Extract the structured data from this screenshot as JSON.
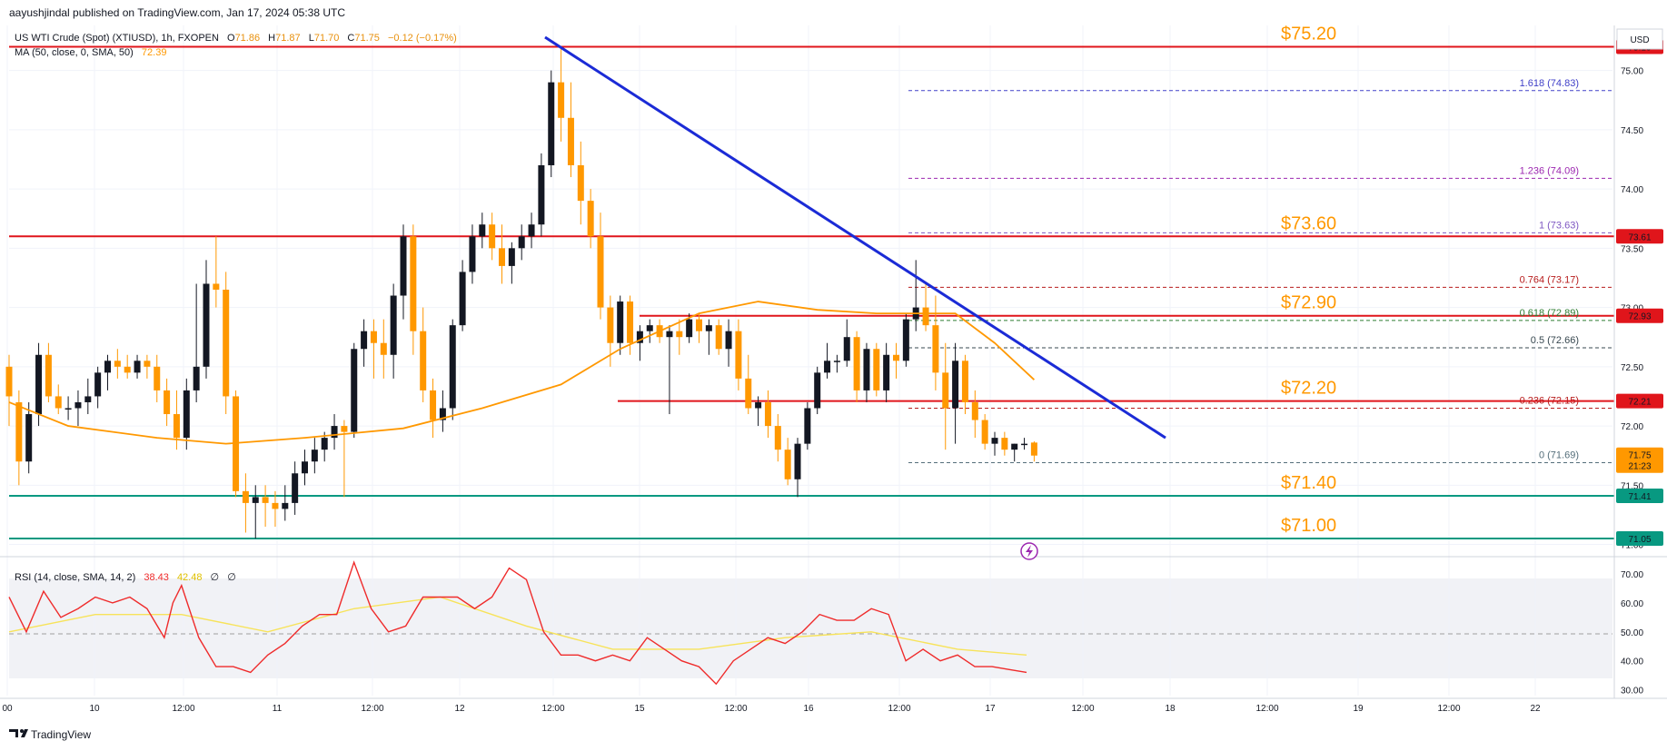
{
  "publish_line": "aayushjindal published on TradingView.com, Jan 17, 2024 05:38 UTC",
  "legend": {
    "symbol": "US WTI Crude (Spot) (XTIUSD), 1h, FXOPEN",
    "o_label": "O",
    "o": "71.86",
    "h_label": "H",
    "h": "71.87",
    "l_label": "L",
    "l": "71.70",
    "c_label": "C",
    "c": "71.75",
    "change": "−0.12 (−0.17%)",
    "ma_label": "MA (50, close, 0, SMA, 50)",
    "ma_value": "72.39",
    "rsi_label": "RSI (14, close, SMA, 14, 2)",
    "rsi_value": "38.43",
    "rsi_ma": "42.48",
    "rsi_extra1": "∅",
    "rsi_extra2": "∅"
  },
  "currency": "USD",
  "price_ticks": [
    "75.00",
    "74.50",
    "74.00",
    "73.50",
    "73.00",
    "72.50",
    "72.00",
    "71.50",
    "71.00"
  ],
  "rsi_ticks": [
    "70.00",
    "60.00",
    "50.00",
    "40.00",
    "30.00"
  ],
  "time_ticks": [
    {
      "label": "00",
      "x": 8
    },
    {
      "label": "10",
      "x": 104
    },
    {
      "label": "12:00",
      "x": 202
    },
    {
      "label": "11",
      "x": 305
    },
    {
      "label": "12:00",
      "x": 410
    },
    {
      "label": "12",
      "x": 506
    },
    {
      "label": "12:00",
      "x": 609
    },
    {
      "label": "15",
      "x": 704
    },
    {
      "label": "12:00",
      "x": 810
    },
    {
      "label": "16",
      "x": 890
    },
    {
      "label": "12:00",
      "x": 990
    },
    {
      "label": "17",
      "x": 1090
    },
    {
      "label": "12:00",
      "x": 1192
    },
    {
      "label": "18",
      "x": 1288
    },
    {
      "label": "12:00",
      "x": 1395
    },
    {
      "label": "19",
      "x": 1495
    },
    {
      "label": "12:00",
      "x": 1595
    },
    {
      "label": "22",
      "x": 1690
    }
  ],
  "levels": [
    {
      "label": "$75.20",
      "price": 75.2,
      "color": "#e0151b",
      "tag": "75.19"
    },
    {
      "label": "$73.60",
      "price": 73.6,
      "color": "#e0151b",
      "tag": "73.61"
    },
    {
      "label": "$72.90",
      "price": 72.93,
      "color": "#e0151b",
      "tag": "72.93"
    },
    {
      "label": "$72.20",
      "price": 72.21,
      "color": "#e0151b",
      "tag": "72.21"
    },
    {
      "label": "$71.40",
      "price": 71.41,
      "color": "#089981",
      "tag": "71.41"
    },
    {
      "label": "$71.00",
      "price": 71.05,
      "color": "#089981",
      "tag": "71.05"
    }
  ],
  "last_price": {
    "value": "71.75",
    "timer": "21:23"
  },
  "fib_levels": [
    {
      "label": "1.618 (74.83)",
      "price": 74.83,
      "color": "#4040c8"
    },
    {
      "label": "1.236 (74.09)",
      "price": 74.09,
      "color": "#9c27b0"
    },
    {
      "label": "1 (73.63)",
      "price": 73.63,
      "color": "#7e57c2"
    },
    {
      "label": "0.764 (73.17)",
      "price": 73.17,
      "color": "#b71c1c"
    },
    {
      "label": "0.618 (72.89)",
      "price": 72.89,
      "color": "#2e7d32"
    },
    {
      "label": "0.5 (72.66)",
      "price": 72.66,
      "color": "#37474f"
    },
    {
      "label": "0.236 (72.15)",
      "price": 72.15,
      "color": "#b71c1c"
    },
    {
      "label": "0 (71.69)",
      "price": 71.69,
      "color": "#546e7a"
    }
  ],
  "logo_text": "TradingView",
  "chart_data": {
    "type": "candlestick",
    "title": "US WTI Crude (Spot) (XTIUSD), 1h, FXOPEN",
    "ylim": [
      70.92,
      75.38
    ],
    "candles": [
      [
        72.5,
        72.6,
        72.0,
        72.25
      ],
      [
        72.2,
        72.3,
        71.5,
        71.7
      ],
      [
        71.7,
        72.2,
        71.6,
        72.1
      ],
      [
        72.1,
        72.7,
        72.0,
        72.6
      ],
      [
        72.6,
        72.7,
        72.2,
        72.25
      ],
      [
        72.25,
        72.35,
        72.1,
        72.15
      ],
      [
        72.15,
        72.25,
        72.05,
        72.15
      ],
      [
        72.15,
        72.3,
        72.0,
        72.2
      ],
      [
        72.2,
        72.4,
        72.1,
        72.25
      ],
      [
        72.25,
        72.5,
        72.15,
        72.45
      ],
      [
        72.45,
        72.6,
        72.3,
        72.55
      ],
      [
        72.55,
        72.65,
        72.4,
        72.5
      ],
      [
        72.5,
        72.6,
        72.4,
        72.45
      ],
      [
        72.45,
        72.6,
        72.4,
        72.55
      ],
      [
        72.55,
        72.6,
        72.4,
        72.5
      ],
      [
        72.5,
        72.6,
        72.2,
        72.3
      ],
      [
        72.3,
        72.4,
        72.0,
        72.1
      ],
      [
        72.1,
        72.3,
        71.8,
        71.9
      ],
      [
        71.9,
        72.4,
        71.8,
        72.3
      ],
      [
        72.3,
        73.2,
        72.2,
        72.5
      ],
      [
        72.5,
        73.4,
        72.4,
        73.2
      ],
      [
        73.2,
        73.6,
        73.0,
        73.15
      ],
      [
        73.15,
        73.3,
        72.1,
        72.25
      ],
      [
        72.25,
        72.3,
        71.4,
        71.45
      ],
      [
        71.45,
        71.6,
        71.1,
        71.35
      ],
      [
        71.35,
        71.5,
        71.05,
        71.4
      ],
      [
        71.4,
        71.5,
        71.15,
        71.35
      ],
      [
        71.35,
        71.45,
        71.15,
        71.3
      ],
      [
        71.3,
        71.5,
        71.2,
        71.35
      ],
      [
        71.35,
        71.7,
        71.25,
        71.6
      ],
      [
        71.6,
        71.8,
        71.5,
        71.7
      ],
      [
        71.7,
        71.9,
        71.6,
        71.8
      ],
      [
        71.8,
        71.95,
        71.7,
        71.9
      ],
      [
        71.9,
        72.1,
        71.8,
        72.0
      ],
      [
        72.0,
        72.05,
        71.4,
        71.95
      ],
      [
        71.95,
        72.7,
        71.9,
        72.65
      ],
      [
        72.65,
        72.9,
        72.5,
        72.8
      ],
      [
        72.8,
        72.9,
        72.4,
        72.7
      ],
      [
        72.7,
        72.9,
        72.4,
        72.6
      ],
      [
        72.6,
        73.2,
        72.4,
        73.1
      ],
      [
        73.1,
        73.7,
        72.9,
        73.6
      ],
      [
        73.6,
        73.7,
        72.6,
        72.8
      ],
      [
        72.8,
        73.0,
        72.2,
        72.3
      ],
      [
        72.3,
        72.4,
        71.9,
        72.05
      ],
      [
        72.05,
        72.3,
        71.95,
        72.15
      ],
      [
        72.15,
        72.9,
        72.05,
        72.85
      ],
      [
        72.85,
        73.4,
        72.8,
        73.3
      ],
      [
        73.3,
        73.7,
        73.2,
        73.6
      ],
      [
        73.6,
        73.8,
        73.5,
        73.7
      ],
      [
        73.7,
        73.8,
        73.4,
        73.5
      ],
      [
        73.5,
        73.7,
        73.2,
        73.35
      ],
      [
        73.35,
        73.55,
        73.2,
        73.5
      ],
      [
        73.5,
        73.7,
        73.4,
        73.6
      ],
      [
        73.6,
        73.8,
        73.5,
        73.7
      ],
      [
        73.7,
        74.3,
        73.6,
        74.2
      ],
      [
        74.2,
        75.0,
        74.1,
        74.9
      ],
      [
        74.9,
        75.2,
        74.4,
        74.6
      ],
      [
        74.6,
        74.9,
        74.1,
        74.2
      ],
      [
        74.2,
        74.4,
        73.7,
        73.9
      ],
      [
        73.9,
        74.0,
        73.5,
        73.6
      ],
      [
        73.6,
        73.8,
        72.9,
        73.0
      ],
      [
        73.0,
        73.1,
        72.5,
        72.7
      ],
      [
        72.7,
        73.1,
        72.6,
        73.05
      ],
      [
        73.05,
        73.1,
        72.6,
        72.7
      ],
      [
        72.7,
        72.85,
        72.55,
        72.8
      ],
      [
        72.8,
        72.9,
        72.7,
        72.85
      ],
      [
        72.85,
        72.9,
        72.7,
        72.75
      ],
      [
        72.75,
        72.85,
        72.1,
        72.8
      ],
      [
        72.8,
        72.9,
        72.6,
        72.75
      ],
      [
        72.75,
        72.95,
        72.7,
        72.9
      ],
      [
        72.9,
        72.95,
        72.7,
        72.8
      ],
      [
        72.8,
        72.9,
        72.6,
        72.85
      ],
      [
        72.85,
        72.9,
        72.6,
        72.65
      ],
      [
        72.65,
        72.9,
        72.5,
        72.8
      ],
      [
        72.8,
        72.9,
        72.3,
        72.4
      ],
      [
        72.4,
        72.6,
        72.1,
        72.15
      ],
      [
        72.15,
        72.25,
        72.0,
        72.2
      ],
      [
        72.2,
        72.3,
        71.9,
        72.0
      ],
      [
        72.0,
        72.1,
        71.7,
        71.8
      ],
      [
        71.8,
        71.9,
        71.5,
        71.55
      ],
      [
        71.55,
        71.9,
        71.4,
        71.85
      ],
      [
        71.85,
        72.2,
        71.8,
        72.15
      ],
      [
        72.15,
        72.5,
        72.1,
        72.45
      ],
      [
        72.45,
        72.7,
        72.4,
        72.55
      ],
      [
        72.55,
        72.6,
        72.45,
        72.55
      ],
      [
        72.55,
        72.9,
        72.5,
        72.75
      ],
      [
        72.75,
        72.8,
        72.2,
        72.3
      ],
      [
        72.3,
        72.7,
        72.2,
        72.65
      ],
      [
        72.65,
        72.7,
        72.25,
        72.3
      ],
      [
        72.3,
        72.7,
        72.2,
        72.6
      ],
      [
        72.6,
        72.7,
        72.4,
        72.55
      ],
      [
        72.55,
        72.95,
        72.5,
        72.9
      ],
      [
        72.9,
        73.4,
        72.8,
        73.0
      ],
      [
        73.0,
        73.2,
        72.8,
        72.85
      ],
      [
        72.85,
        73.1,
        72.3,
        72.45
      ],
      [
        72.45,
        72.7,
        71.8,
        72.15
      ],
      [
        72.15,
        72.7,
        71.85,
        72.55
      ],
      [
        72.55,
        72.6,
        72.1,
        72.2
      ],
      [
        72.2,
        72.3,
        71.9,
        72.05
      ],
      [
        72.05,
        72.1,
        71.8,
        71.85
      ],
      [
        71.85,
        71.95,
        71.75,
        71.9
      ],
      [
        71.9,
        71.95,
        71.75,
        71.8
      ],
      [
        71.8,
        71.85,
        71.7,
        71.85
      ],
      [
        71.85,
        71.9,
        71.8,
        71.85
      ],
      [
        71.86,
        71.87,
        71.7,
        71.75
      ]
    ],
    "ma50": [
      [
        0,
        72.2
      ],
      [
        6,
        72.0
      ],
      [
        15,
        71.9
      ],
      [
        22,
        71.85
      ],
      [
        30,
        71.9
      ],
      [
        40,
        71.98
      ],
      [
        48,
        72.15
      ],
      [
        56,
        72.35
      ],
      [
        62,
        72.65
      ],
      [
        70,
        72.95
      ],
      [
        76,
        73.05
      ],
      [
        82,
        72.98
      ],
      [
        88,
        72.95
      ],
      [
        96,
        72.95
      ],
      [
        100,
        72.7
      ],
      [
        104,
        72.39
      ]
    ],
    "trendline": [
      [
        62,
        75.28
      ],
      [
        130,
        71.9
      ]
    ],
    "rsi": [
      [
        0,
        62
      ],
      [
        2,
        50
      ],
      [
        4,
        64
      ],
      [
        6,
        55
      ],
      [
        8,
        58
      ],
      [
        10,
        62
      ],
      [
        12,
        60
      ],
      [
        14,
        62
      ],
      [
        16,
        58
      ],
      [
        18,
        48
      ],
      [
        19,
        60
      ],
      [
        20,
        66
      ],
      [
        22,
        48
      ],
      [
        24,
        38
      ],
      [
        26,
        38
      ],
      [
        28,
        36
      ],
      [
        30,
        42
      ],
      [
        32,
        46
      ],
      [
        34,
        52
      ],
      [
        36,
        56
      ],
      [
        38,
        56
      ],
      [
        40,
        74
      ],
      [
        42,
        58
      ],
      [
        44,
        50
      ],
      [
        46,
        52
      ],
      [
        48,
        62
      ],
      [
        50,
        62
      ],
      [
        52,
        62
      ],
      [
        54,
        58
      ],
      [
        56,
        62
      ],
      [
        58,
        72
      ],
      [
        60,
        68
      ],
      [
        62,
        50
      ],
      [
        64,
        42
      ],
      [
        66,
        42
      ],
      [
        68,
        40
      ],
      [
        70,
        42
      ],
      [
        72,
        40
      ],
      [
        74,
        48
      ],
      [
        76,
        44
      ],
      [
        78,
        40
      ],
      [
        80,
        38
      ],
      [
        82,
        32
      ],
      [
        84,
        40
      ],
      [
        86,
        44
      ],
      [
        88,
        48
      ],
      [
        90,
        46
      ],
      [
        92,
        50
      ],
      [
        94,
        56
      ],
      [
        96,
        54
      ],
      [
        98,
        54
      ],
      [
        100,
        58
      ],
      [
        102,
        56
      ],
      [
        104,
        40
      ],
      [
        106,
        44
      ],
      [
        108,
        40
      ],
      [
        110,
        42
      ],
      [
        112,
        38
      ],
      [
        114,
        38
      ],
      [
        116,
        37
      ],
      [
        118,
        36
      ]
    ],
    "rsi_ma": [
      [
        0,
        50
      ],
      [
        10,
        56
      ],
      [
        20,
        56
      ],
      [
        30,
        50
      ],
      [
        40,
        58
      ],
      [
        50,
        62
      ],
      [
        60,
        52
      ],
      [
        70,
        44
      ],
      [
        80,
        44
      ],
      [
        90,
        48
      ],
      [
        100,
        50
      ],
      [
        110,
        44
      ],
      [
        118,
        42
      ]
    ],
    "rsi_ylim": [
      28,
      75
    ],
    "grid": true
  }
}
